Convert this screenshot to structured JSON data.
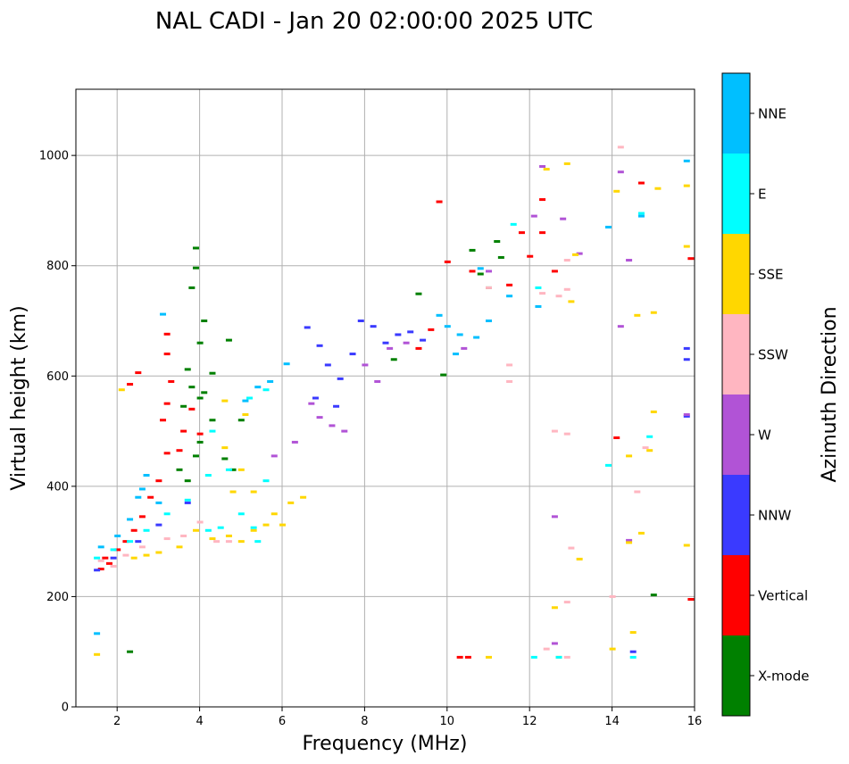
{
  "chart_data": {
    "type": "scatter",
    "title": "NAL CADI - Jan 20 02:00:00 2025 UTC",
    "xlabel": "Frequency (MHz)",
    "ylabel": "Virtual height (km)",
    "xlim": [
      1.0,
      16.0
    ],
    "ylim": [
      0,
      1120
    ],
    "xticks": [
      2,
      4,
      6,
      8,
      10,
      12,
      14,
      16
    ],
    "yticks": [
      0,
      200,
      400,
      600,
      800,
      1000
    ],
    "grid": true,
    "colorbar": {
      "label": "Azimuth Direction",
      "categories": [
        {
          "name": "X-mode",
          "color": "#008000"
        },
        {
          "name": "Vertical",
          "color": "#ff0000"
        },
        {
          "name": "NNW",
          "color": "#3a3aff"
        },
        {
          "name": "W",
          "color": "#b153d6"
        },
        {
          "name": "SSW",
          "color": "#ffb6c1"
        },
        {
          "name": "SSE",
          "color": "#ffd700"
        },
        {
          "name": "E",
          "color": "#00ffff"
        },
        {
          "name": "NNE",
          "color": "#00bfff"
        }
      ]
    },
    "series": [
      {
        "name": "X-mode",
        "points": [
          [
            2.3,
            100
          ],
          [
            3.9,
            832
          ],
          [
            3.9,
            796
          ],
          [
            3.8,
            760
          ],
          [
            4.1,
            700
          ],
          [
            4.0,
            660
          ],
          [
            3.7,
            612
          ],
          [
            4.1,
            570
          ],
          [
            3.6,
            545
          ],
          [
            4.3,
            520
          ],
          [
            4.0,
            480
          ],
          [
            3.9,
            455
          ],
          [
            4.6,
            450
          ],
          [
            3.5,
            430
          ],
          [
            4.8,
            430
          ],
          [
            3.7,
            410
          ],
          [
            4.0,
            560
          ],
          [
            4.3,
            605
          ],
          [
            3.8,
            580
          ],
          [
            4.7,
            665
          ],
          [
            5.0,
            520
          ],
          [
            9.3,
            749
          ],
          [
            9.9,
            602
          ],
          [
            10.8,
            785
          ],
          [
            11.0,
            760
          ],
          [
            11.3,
            815
          ],
          [
            10.6,
            828
          ],
          [
            11.2,
            844
          ],
          [
            8.7,
            630
          ],
          [
            15.0,
            203
          ]
        ]
      },
      {
        "name": "Vertical",
        "points": [
          [
            1.6,
            250
          ],
          [
            1.7,
            270
          ],
          [
            1.8,
            260
          ],
          [
            2.0,
            285
          ],
          [
            2.2,
            300
          ],
          [
            2.4,
            320
          ],
          [
            2.6,
            345
          ],
          [
            2.8,
            380
          ],
          [
            3.0,
            410
          ],
          [
            3.2,
            460
          ],
          [
            3.1,
            520
          ],
          [
            3.2,
            550
          ],
          [
            3.3,
            590
          ],
          [
            3.2,
            640
          ],
          [
            3.2,
            676
          ],
          [
            2.5,
            606
          ],
          [
            2.3,
            585
          ],
          [
            3.6,
            500
          ],
          [
            3.5,
            465
          ],
          [
            3.8,
            540
          ],
          [
            4.0,
            495
          ],
          [
            9.6,
            684
          ],
          [
            9.3,
            650
          ],
          [
            10.0,
            807
          ],
          [
            9.8,
            916
          ],
          [
            10.6,
            790
          ],
          [
            11.5,
            765
          ],
          [
            11.8,
            860
          ],
          [
            12.3,
            920
          ],
          [
            12.3,
            860
          ],
          [
            12.0,
            817
          ],
          [
            12.6,
            790
          ],
          [
            14.1,
            488
          ],
          [
            14.7,
            950
          ],
          [
            15.9,
            813
          ],
          [
            15.9,
            195
          ],
          [
            10.3,
            90
          ],
          [
            10.5,
            90
          ]
        ]
      },
      {
        "name": "NNW",
        "points": [
          [
            1.5,
            248
          ],
          [
            1.9,
            270
          ],
          [
            2.5,
            300
          ],
          [
            3.0,
            330
          ],
          [
            3.7,
            370
          ],
          [
            6.6,
            688
          ],
          [
            6.9,
            655
          ],
          [
            7.1,
            620
          ],
          [
            7.4,
            595
          ],
          [
            7.7,
            640
          ],
          [
            7.9,
            700
          ],
          [
            8.2,
            690
          ],
          [
            8.5,
            660
          ],
          [
            8.8,
            675
          ],
          [
            9.1,
            680
          ],
          [
            9.4,
            665
          ],
          [
            6.8,
            560
          ],
          [
            7.3,
            545
          ],
          [
            15.8,
            650
          ],
          [
            15.8,
            630
          ],
          [
            15.8,
            527
          ],
          [
            14.5,
            100
          ]
        ]
      },
      {
        "name": "W",
        "points": [
          [
            6.7,
            550
          ],
          [
            6.9,
            525
          ],
          [
            7.2,
            510
          ],
          [
            6.3,
            480
          ],
          [
            5.8,
            455
          ],
          [
            7.5,
            500
          ],
          [
            8.0,
            620
          ],
          [
            8.3,
            590
          ],
          [
            8.6,
            650
          ],
          [
            9.0,
            660
          ],
          [
            10.4,
            650
          ],
          [
            11.0,
            790
          ],
          [
            12.1,
            890
          ],
          [
            12.3,
            980
          ],
          [
            12.8,
            885
          ],
          [
            13.2,
            822
          ],
          [
            14.2,
            970
          ],
          [
            14.4,
            810
          ],
          [
            14.2,
            690
          ],
          [
            12.6,
            345
          ],
          [
            12.6,
            115
          ],
          [
            14.4,
            302
          ],
          [
            15.8,
            530
          ]
        ]
      },
      {
        "name": "SSW",
        "points": [
          [
            1.6,
            265
          ],
          [
            1.9,
            255
          ],
          [
            2.2,
            275
          ],
          [
            2.6,
            290
          ],
          [
            3.2,
            305
          ],
          [
            3.6,
            310
          ],
          [
            4.0,
            335
          ],
          [
            4.4,
            300
          ],
          [
            4.7,
            300
          ],
          [
            12.3,
            750
          ],
          [
            12.7,
            745
          ],
          [
            12.9,
            757
          ],
          [
            12.6,
            500
          ],
          [
            12.9,
            495
          ],
          [
            14.8,
            470
          ],
          [
            14.6,
            390
          ],
          [
            14.0,
            200
          ],
          [
            12.9,
            190
          ],
          [
            12.4,
            105
          ],
          [
            12.9,
            90
          ],
          [
            13.0,
            288
          ],
          [
            11.5,
            620
          ],
          [
            11.5,
            590
          ],
          [
            11.0,
            760
          ],
          [
            12.9,
            810
          ],
          [
            14.2,
            1015
          ]
        ]
      },
      {
        "name": "SSE",
        "points": [
          [
            2.4,
            270
          ],
          [
            2.7,
            275
          ],
          [
            3.0,
            280
          ],
          [
            3.5,
            290
          ],
          [
            3.9,
            320
          ],
          [
            4.3,
            305
          ],
          [
            4.7,
            310
          ],
          [
            5.0,
            300
          ],
          [
            5.3,
            320
          ],
          [
            5.6,
            330
          ],
          [
            6.0,
            330
          ],
          [
            5.8,
            350
          ],
          [
            4.8,
            390
          ],
          [
            5.0,
            430
          ],
          [
            4.6,
            470
          ],
          [
            5.1,
            530
          ],
          [
            4.6,
            555
          ],
          [
            5.3,
            390
          ],
          [
            6.2,
            370
          ],
          [
            6.5,
            380
          ],
          [
            2.1,
            575
          ],
          [
            1.5,
            95
          ],
          [
            12.4,
            975
          ],
          [
            12.9,
            985
          ],
          [
            13.1,
            820
          ],
          [
            13.0,
            735
          ],
          [
            14.1,
            935
          ],
          [
            14.6,
            710
          ],
          [
            15.1,
            940
          ],
          [
            15.0,
            715
          ],
          [
            14.4,
            455
          ],
          [
            14.9,
            465
          ],
          [
            15.0,
            535
          ],
          [
            15.8,
            945
          ],
          [
            15.8,
            835
          ],
          [
            15.8,
            293
          ],
          [
            14.7,
            315
          ],
          [
            14.5,
            135
          ],
          [
            12.7,
            90
          ],
          [
            11.0,
            90
          ],
          [
            14.0,
            105
          ],
          [
            14.4,
            298
          ],
          [
            12.6,
            180
          ],
          [
            13.2,
            268
          ]
        ]
      },
      {
        "name": "E",
        "points": [
          [
            1.5,
            270
          ],
          [
            1.9,
            285
          ],
          [
            2.3,
            300
          ],
          [
            2.7,
            320
          ],
          [
            3.2,
            350
          ],
          [
            3.7,
            375
          ],
          [
            4.2,
            420
          ],
          [
            4.7,
            430
          ],
          [
            5.0,
            350
          ],
          [
            4.5,
            325
          ],
          [
            4.2,
            320
          ],
          [
            5.4,
            300
          ],
          [
            5.3,
            325
          ],
          [
            5.6,
            410
          ],
          [
            5.2,
            560
          ],
          [
            5.6,
            575
          ],
          [
            4.3,
            500
          ],
          [
            12.2,
            760
          ],
          [
            14.7,
            895
          ],
          [
            14.9,
            490
          ],
          [
            13.9,
            438
          ],
          [
            12.1,
            90
          ],
          [
            12.7,
            90
          ],
          [
            14.5,
            90
          ],
          [
            11.6,
            875
          ]
        ]
      },
      {
        "name": "NNE",
        "points": [
          [
            1.5,
            133
          ],
          [
            1.6,
            290
          ],
          [
            2.0,
            310
          ],
          [
            2.3,
            340
          ],
          [
            2.5,
            380
          ],
          [
            2.7,
            420
          ],
          [
            3.1,
            712
          ],
          [
            2.6,
            395
          ],
          [
            3.0,
            370
          ],
          [
            5.1,
            555
          ],
          [
            5.4,
            580
          ],
          [
            5.7,
            590
          ],
          [
            6.1,
            622
          ],
          [
            10.3,
            675
          ],
          [
            10.2,
            640
          ],
          [
            10.7,
            670
          ],
          [
            11.0,
            700
          ],
          [
            10.0,
            690
          ],
          [
            9.8,
            710
          ],
          [
            11.5,
            745
          ],
          [
            12.2,
            726
          ],
          [
            10.8,
            795
          ],
          [
            14.7,
            890
          ],
          [
            13.9,
            870
          ],
          [
            15.8,
            990
          ]
        ]
      }
    ]
  }
}
